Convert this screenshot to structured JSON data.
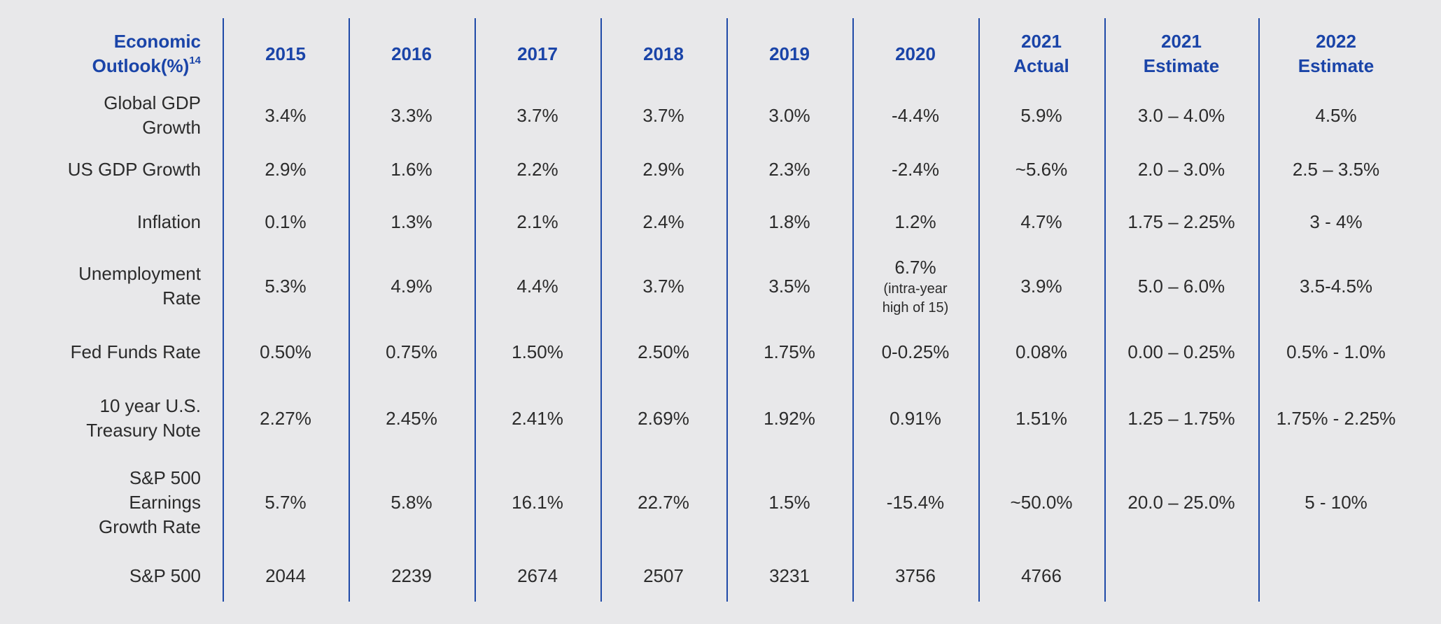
{
  "chart_data": {
    "type": "table",
    "header": {
      "label": "Economic Outlook(%)",
      "label_superscript": "14",
      "columns": [
        "2015",
        "2016",
        "2017",
        "2018",
        "2019",
        "2020",
        "2021 Actual",
        "2021 Estimate",
        "2022 Estimate"
      ]
    },
    "rows": [
      {
        "label": "Global GDP Growth",
        "values": [
          "3.4%",
          "3.3%",
          "3.7%",
          "3.7%",
          "3.0%",
          "-4.4%",
          "5.9%",
          "3.0 – 4.0%",
          "4.5%"
        ]
      },
      {
        "label": "US GDP Growth",
        "values": [
          "2.9%",
          "1.6%",
          "2.2%",
          "2.9%",
          "2.3%",
          "-2.4%",
          "~5.6%",
          "2.0 – 3.0%",
          "2.5 – 3.5%"
        ]
      },
      {
        "label": "Inflation",
        "values": [
          "0.1%",
          "1.3%",
          "2.1%",
          "2.4%",
          "1.8%",
          "1.2%",
          "4.7%",
          "1.75 – 2.25%",
          "3 - 4%"
        ]
      },
      {
        "label": "Unemployment Rate",
        "values": [
          "5.3%",
          "4.9%",
          "4.4%",
          "3.7%",
          "3.5%",
          "6.7%",
          "3.9%",
          "5.0 – 6.0%",
          "3.5-4.5%"
        ],
        "notes": {
          "5": "(intra-year high of 15)"
        }
      },
      {
        "label": "Fed Funds Rate",
        "values": [
          "0.50%",
          "0.75%",
          "1.50%",
          "2.50%",
          "1.75%",
          "0-0.25%",
          "0.08%",
          "0.00 – 0.25%",
          "0.5% - 1.0%"
        ]
      },
      {
        "label": "10 year U.S. Treasury Note",
        "values": [
          "2.27%",
          "2.45%",
          "2.41%",
          "2.69%",
          "1.92%",
          "0.91%",
          "1.51%",
          "1.25 – 1.75%",
          "1.75% - 2.25%"
        ]
      },
      {
        "label": "S&P 500 Earnings Growth Rate",
        "values": [
          "5.7%",
          "5.8%",
          "16.1%",
          "22.7%",
          "1.5%",
          "-15.4%",
          "~50.0%",
          "20.0 – 25.0%",
          "5 - 10%"
        ]
      },
      {
        "label": "S&P 500",
        "values": [
          "2044",
          "2239",
          "2674",
          "2507",
          "3231",
          "3756",
          "4766",
          "",
          ""
        ]
      }
    ]
  },
  "colors": {
    "header_text": "#1a44a8",
    "divider": "#1f4aa8",
    "body_text": "#2b2b2b",
    "background": "#e8e8ea"
  }
}
